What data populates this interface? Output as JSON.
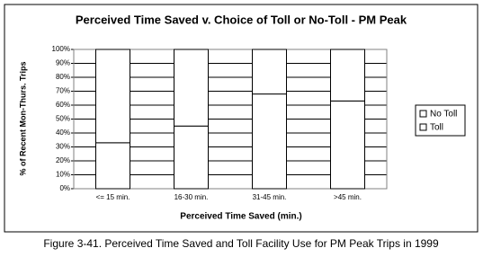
{
  "chart_data": {
    "type": "bar",
    "stacked": true,
    "title": "Perceived Time Saved v. Choice of Toll or No-Toll - PM Peak",
    "x_label": "Perceived Time Saved (min.)",
    "y_label": "% of Recent Mon-Thurs. Trips",
    "categories": [
      "<= 15 min.",
      "16-30 min.",
      "31-45 min.",
      ">45 min."
    ],
    "series": [
      {
        "name": "Toll",
        "color": "#ffffff",
        "values": [
          33,
          45,
          68,
          63
        ]
      },
      {
        "name": "No Toll",
        "color": "#ffffff",
        "values": [
          67,
          55,
          32,
          37
        ]
      }
    ],
    "ylim": [
      0,
      100
    ],
    "yticks": [
      {
        "value": 0,
        "label": "0%"
      },
      {
        "value": 10,
        "label": "10%"
      },
      {
        "value": 20,
        "label": "20%"
      },
      {
        "value": 30,
        "label": "30%"
      },
      {
        "value": 40,
        "label": "40%"
      },
      {
        "value": 50,
        "label": "50%"
      },
      {
        "value": 60,
        "label": "60%"
      },
      {
        "value": 70,
        "label": "70%"
      },
      {
        "value": 80,
        "label": "80%"
      },
      {
        "value": 90,
        "label": "90%"
      },
      {
        "value": 100,
        "label": "100%"
      }
    ],
    "grid": true,
    "legend": "right"
  },
  "caption": "Figure 3-41. Perceived Time Saved and Toll Facility Use for PM Peak Trips in 1999"
}
